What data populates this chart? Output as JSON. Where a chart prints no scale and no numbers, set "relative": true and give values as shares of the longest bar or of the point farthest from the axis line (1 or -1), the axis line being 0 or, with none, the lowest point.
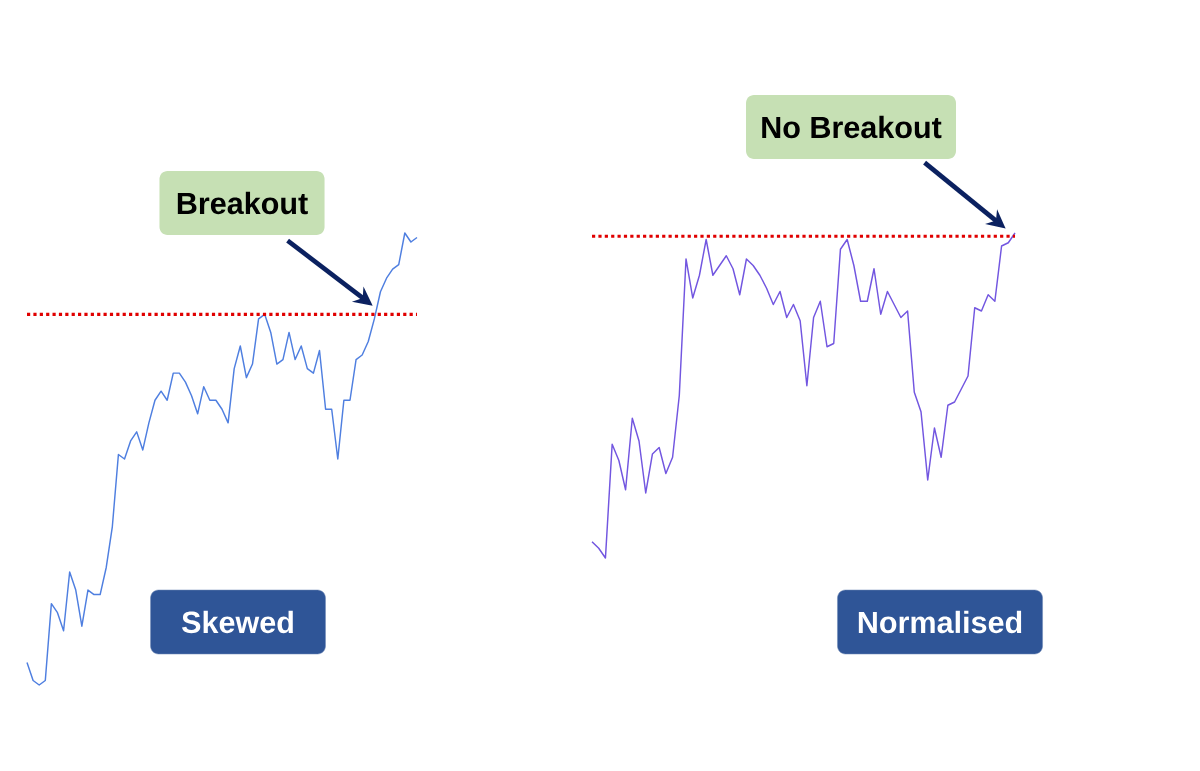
{
  "chart_data": [
    {
      "type": "line",
      "relative": true,
      "title": "Skewed",
      "annotations": [
        "Breakout"
      ],
      "categories": [
        null,
        null,
        null,
        null,
        null,
        null,
        null,
        null,
        null,
        null,
        null,
        null,
        null,
        null,
        null,
        null,
        null,
        null,
        null,
        null,
        null,
        null,
        null,
        null,
        null,
        null,
        null,
        null,
        null,
        null,
        null,
        null,
        null,
        null,
        null,
        null,
        null,
        null,
        null,
        null,
        null,
        null,
        null,
        null,
        null,
        null,
        null,
        null,
        null,
        null,
        null,
        null,
        null,
        null,
        null,
        null,
        null,
        null,
        null,
        null,
        null,
        null,
        null,
        null,
        null
      ],
      "series": [
        {
          "color": "#4f7fe0",
          "values": [
            0.05,
            0.01,
            0,
            0.01,
            0.18,
            0.16,
            0.12,
            0.25,
            0.21,
            0.13,
            0.21,
            0.2,
            0.2,
            0.26,
            0.35,
            0.51,
            0.5,
            0.54,
            0.56,
            0.52,
            0.58,
            0.63,
            0.65,
            0.63,
            0.69,
            0.69,
            0.67,
            0.64,
            0.6,
            0.66,
            0.63,
            0.63,
            0.61,
            0.58,
            0.7,
            0.75,
            0.68,
            0.71,
            0.81,
            0.82,
            0.78,
            0.71,
            0.72,
            0.78,
            0.72,
            0.75,
            0.7,
            0.69,
            0.74,
            0.61,
            0.61,
            0.5,
            0.63,
            0.63,
            0.72,
            0.73,
            0.76,
            0.81,
            0.87,
            0.9,
            0.92,
            0.93,
            1.0,
            0.98,
            0.99
          ]
        }
      ],
      "ref_lines": [
        {
          "axis": "y",
          "value": 0.82,
          "color": "#e00000",
          "line_style": "dotted"
        }
      ]
    },
    {
      "type": "line",
      "relative": true,
      "title": "Normalised",
      "annotations": [
        "No Breakout"
      ],
      "categories": [
        null,
        null,
        null,
        null,
        null,
        null,
        null,
        null,
        null,
        null,
        null,
        null,
        null,
        null,
        null,
        null,
        null,
        null,
        null,
        null,
        null,
        null,
        null,
        null,
        null,
        null,
        null,
        null,
        null,
        null,
        null,
        null,
        null,
        null,
        null,
        null,
        null,
        null,
        null,
        null,
        null,
        null,
        null,
        null,
        null,
        null,
        null,
        null,
        null,
        null,
        null,
        null,
        null,
        null,
        null,
        null,
        null,
        null,
        null,
        null,
        null,
        null,
        null,
        null
      ],
      "series": [
        {
          "color": "#7256e0",
          "values": [
            0.05,
            0.03,
            0,
            0.35,
            0.3,
            0.21,
            0.43,
            0.36,
            0.2,
            0.32,
            0.34,
            0.26,
            0.31,
            0.5,
            0.92,
            0.8,
            0.87,
            0.98,
            0.87,
            0.9,
            0.93,
            0.89,
            0.81,
            0.92,
            0.9,
            0.87,
            0.83,
            0.78,
            0.82,
            0.74,
            0.78,
            0.73,
            0.53,
            0.74,
            0.79,
            0.65,
            0.66,
            0.95,
            0.98,
            0.9,
            0.79,
            0.79,
            0.89,
            0.75,
            0.82,
            0.78,
            0.74,
            0.76,
            0.51,
            0.45,
            0.24,
            0.4,
            0.31,
            0.47,
            0.48,
            0.52,
            0.56,
            0.77,
            0.76,
            0.81,
            0.79,
            0.96,
            0.97,
            1.0
          ]
        }
      ],
      "ref_lines": [
        {
          "axis": "y",
          "value": 0.99,
          "color": "#e00000",
          "line_style": "dotted"
        }
      ]
    }
  ]
}
